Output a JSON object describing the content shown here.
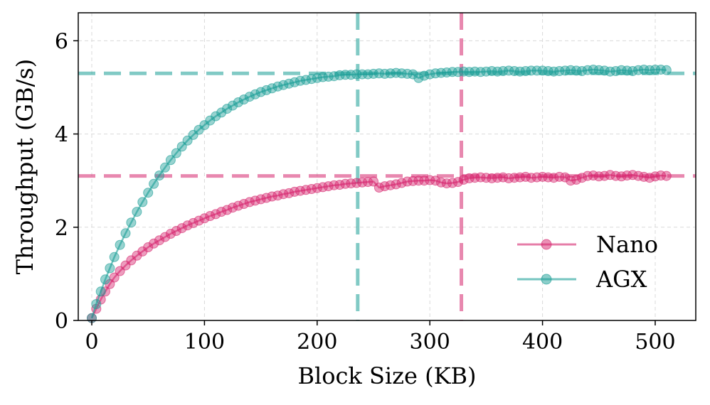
{
  "chart_data": {
    "type": "line",
    "title": "",
    "xlabel": "Block Size (KB)",
    "ylabel": "Throughput (GB/s)",
    "xlim": [
      -12,
      536
    ],
    "ylim": [
      0,
      6.6
    ],
    "xticks": [
      0,
      100,
      200,
      300,
      400,
      500
    ],
    "yticks": [
      0,
      2,
      4,
      6
    ],
    "grid": true,
    "legend_position": "lower-right",
    "series": [
      {
        "name": "Nano",
        "color": "#d6266e",
        "marker": "circle",
        "plateau": 3.1,
        "saturation_point_kb": 328,
        "points": [
          [
            0,
            0.05
          ],
          [
            4,
            0.25
          ],
          [
            8,
            0.45
          ],
          [
            12,
            0.62
          ],
          [
            16,
            0.78
          ],
          [
            20,
            0.92
          ],
          [
            25,
            1.06
          ],
          [
            30,
            1.18
          ],
          [
            35,
            1.29
          ],
          [
            40,
            1.39
          ],
          [
            45,
            1.48
          ],
          [
            50,
            1.57
          ],
          [
            55,
            1.65
          ],
          [
            60,
            1.72
          ],
          [
            65,
            1.79
          ],
          [
            70,
            1.86
          ],
          [
            75,
            1.92
          ],
          [
            80,
            1.98
          ],
          [
            85,
            2.04
          ],
          [
            90,
            2.09
          ],
          [
            95,
            2.14
          ],
          [
            100,
            2.19
          ],
          [
            105,
            2.24
          ],
          [
            110,
            2.28
          ],
          [
            115,
            2.33
          ],
          [
            120,
            2.37
          ],
          [
            125,
            2.42
          ],
          [
            130,
            2.46
          ],
          [
            135,
            2.5
          ],
          [
            140,
            2.54
          ],
          [
            145,
            2.57
          ],
          [
            150,
            2.6
          ],
          [
            155,
            2.63
          ],
          [
            160,
            2.66
          ],
          [
            165,
            2.68
          ],
          [
            170,
            2.71
          ],
          [
            175,
            2.73
          ],
          [
            180,
            2.76
          ],
          [
            185,
            2.78
          ],
          [
            190,
            2.8
          ],
          [
            195,
            2.82
          ],
          [
            200,
            2.84
          ],
          [
            205,
            2.86
          ],
          [
            210,
            2.88
          ],
          [
            215,
            2.9
          ],
          [
            220,
            2.91
          ],
          [
            225,
            2.93
          ],
          [
            230,
            2.94
          ],
          [
            235,
            2.95
          ],
          [
            240,
            2.96
          ],
          [
            245,
            2.97
          ],
          [
            250,
            2.98
          ],
          [
            255,
            2.85
          ],
          [
            260,
            2.88
          ],
          [
            265,
            2.9
          ],
          [
            270,
            2.92
          ],
          [
            275,
            2.95
          ],
          [
            280,
            2.98
          ],
          [
            285,
            2.99
          ],
          [
            290,
            3.0
          ],
          [
            295,
            3.0
          ],
          [
            300,
            3.01
          ],
          [
            305,
            3.0
          ],
          [
            310,
            2.96
          ],
          [
            315,
            2.94
          ],
          [
            320,
            2.95
          ],
          [
            325,
            2.97
          ],
          [
            330,
            3.02
          ],
          [
            335,
            3.05
          ],
          [
            340,
            3.06
          ],
          [
            345,
            3.07
          ],
          [
            350,
            3.06
          ],
          [
            355,
            3.05
          ],
          [
            360,
            3.06
          ],
          [
            365,
            3.07
          ],
          [
            370,
            3.05
          ],
          [
            375,
            3.06
          ],
          [
            380,
            3.07
          ],
          [
            385,
            3.08
          ],
          [
            390,
            3.06
          ],
          [
            395,
            3.07
          ],
          [
            400,
            3.08
          ],
          [
            405,
            3.07
          ],
          [
            410,
            3.06
          ],
          [
            415,
            3.08
          ],
          [
            420,
            3.07
          ],
          [
            425,
            3.0
          ],
          [
            430,
            3.02
          ],
          [
            435,
            3.06
          ],
          [
            440,
            3.1
          ],
          [
            445,
            3.11
          ],
          [
            450,
            3.09
          ],
          [
            455,
            3.1
          ],
          [
            460,
            3.12
          ],
          [
            465,
            3.1
          ],
          [
            470,
            3.09
          ],
          [
            475,
            3.11
          ],
          [
            480,
            3.12
          ],
          [
            485,
            3.1
          ],
          [
            490,
            3.08
          ],
          [
            495,
            3.06
          ],
          [
            500,
            3.09
          ],
          [
            505,
            3.11
          ],
          [
            510,
            3.1
          ]
        ]
      },
      {
        "name": "AGX",
        "color": "#1a9e96",
        "marker": "circle",
        "plateau": 5.3,
        "saturation_point_kb": 236,
        "points": [
          [
            0,
            0.05
          ],
          [
            4,
            0.35
          ],
          [
            8,
            0.62
          ],
          [
            12,
            0.88
          ],
          [
            16,
            1.12
          ],
          [
            20,
            1.36
          ],
          [
            25,
            1.62
          ],
          [
            30,
            1.87
          ],
          [
            35,
            2.1
          ],
          [
            40,
            2.33
          ],
          [
            45,
            2.54
          ],
          [
            50,
            2.74
          ],
          [
            55,
            2.93
          ],
          [
            60,
            3.11
          ],
          [
            65,
            3.28
          ],
          [
            70,
            3.44
          ],
          [
            75,
            3.59
          ],
          [
            80,
            3.73
          ],
          [
            85,
            3.86
          ],
          [
            90,
            3.98
          ],
          [
            95,
            4.09
          ],
          [
            100,
            4.19
          ],
          [
            105,
            4.29
          ],
          [
            110,
            4.38
          ],
          [
            115,
            4.46
          ],
          [
            120,
            4.54
          ],
          [
            125,
            4.61
          ],
          [
            130,
            4.68
          ],
          [
            135,
            4.74
          ],
          [
            140,
            4.8
          ],
          [
            145,
            4.85
          ],
          [
            150,
            4.9
          ],
          [
            155,
            4.94
          ],
          [
            160,
            4.98
          ],
          [
            165,
            5.02
          ],
          [
            170,
            5.05
          ],
          [
            175,
            5.08
          ],
          [
            180,
            5.11
          ],
          [
            185,
            5.14
          ],
          [
            190,
            5.16
          ],
          [
            195,
            5.18
          ],
          [
            200,
            5.2
          ],
          [
            205,
            5.22
          ],
          [
            210,
            5.23
          ],
          [
            215,
            5.24
          ],
          [
            220,
            5.26
          ],
          [
            225,
            5.27
          ],
          [
            230,
            5.27
          ],
          [
            235,
            5.28
          ],
          [
            240,
            5.28
          ],
          [
            245,
            5.28
          ],
          [
            250,
            5.29
          ],
          [
            255,
            5.3
          ],
          [
            260,
            5.29
          ],
          [
            265,
            5.3
          ],
          [
            270,
            5.31
          ],
          [
            275,
            5.3
          ],
          [
            280,
            5.29
          ],
          [
            285,
            5.28
          ],
          [
            290,
            5.2
          ],
          [
            295,
            5.25
          ],
          [
            300,
            5.28
          ],
          [
            305,
            5.3
          ],
          [
            310,
            5.31
          ],
          [
            315,
            5.32
          ],
          [
            320,
            5.33
          ],
          [
            325,
            5.33
          ],
          [
            330,
            5.34
          ],
          [
            335,
            5.33
          ],
          [
            340,
            5.34
          ],
          [
            345,
            5.33
          ],
          [
            350,
            5.34
          ],
          [
            355,
            5.35
          ],
          [
            360,
            5.34
          ],
          [
            365,
            5.35
          ],
          [
            370,
            5.36
          ],
          [
            375,
            5.35
          ],
          [
            380,
            5.34
          ],
          [
            385,
            5.35
          ],
          [
            390,
            5.36
          ],
          [
            395,
            5.36
          ],
          [
            400,
            5.36
          ],
          [
            405,
            5.35
          ],
          [
            410,
            5.34
          ],
          [
            415,
            5.35
          ],
          [
            420,
            5.36
          ],
          [
            425,
            5.37
          ],
          [
            430,
            5.36
          ],
          [
            435,
            5.35
          ],
          [
            440,
            5.37
          ],
          [
            445,
            5.38
          ],
          [
            450,
            5.37
          ],
          [
            455,
            5.36
          ],
          [
            460,
            5.34
          ],
          [
            465,
            5.35
          ],
          [
            470,
            5.37
          ],
          [
            475,
            5.36
          ],
          [
            480,
            5.35
          ],
          [
            485,
            5.37
          ],
          [
            490,
            5.38
          ],
          [
            495,
            5.37
          ],
          [
            500,
            5.38
          ],
          [
            505,
            5.38
          ],
          [
            510,
            5.37
          ]
        ]
      }
    ]
  }
}
